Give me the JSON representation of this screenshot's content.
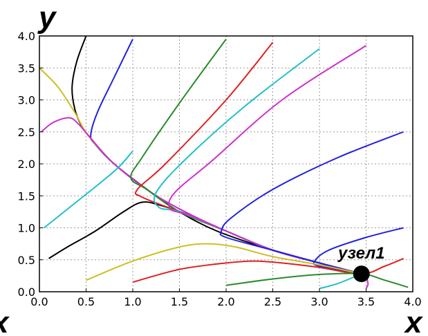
{
  "chart_data": {
    "type": "line",
    "xlabel": "x",
    "ylabel": "y",
    "xlim": [
      0,
      4
    ],
    "ylim": [
      0,
      4
    ],
    "xticks": [
      "0.0",
      "0.5",
      "1.0",
      "1.5",
      "2.0",
      "2.5",
      "3.0",
      "3.5",
      "4.0"
    ],
    "yticks": [
      "0.0",
      "0.5",
      "1.0",
      "1.5",
      "2.0",
      "2.5",
      "3.0",
      "3.5",
      "4.0"
    ],
    "grid": true,
    "left_edge_label": "x",
    "annotation": {
      "text": "узел1",
      "point": [
        3.45,
        0.28
      ]
    },
    "series": [
      {
        "color": "#000000",
        "points": [
          [
            0.5,
            4.0
          ],
          [
            0.4,
            3.6
          ],
          [
            0.35,
            3.2
          ],
          [
            0.38,
            2.85
          ],
          [
            0.45,
            2.6
          ],
          [
            0.55,
            2.4
          ],
          [
            0.8,
            2.0
          ],
          [
            1.2,
            1.55
          ],
          [
            1.5,
            1.25
          ],
          [
            1.9,
            0.95
          ],
          [
            2.5,
            0.65
          ],
          [
            3.0,
            0.45
          ],
          [
            3.45,
            0.28
          ]
        ]
      },
      {
        "color": "#000000",
        "points": [
          [
            0.1,
            0.52
          ],
          [
            0.3,
            0.7
          ],
          [
            0.6,
            0.95
          ],
          [
            0.9,
            1.25
          ],
          [
            1.1,
            1.4
          ],
          [
            1.3,
            1.35
          ],
          [
            1.6,
            1.2
          ],
          [
            2.0,
            0.95
          ],
          [
            2.5,
            0.65
          ],
          [
            3.0,
            0.45
          ],
          [
            3.45,
            0.28
          ]
        ]
      },
      {
        "color": "#2020e0",
        "points": [
          [
            1.0,
            3.95
          ],
          [
            0.8,
            3.35
          ],
          [
            0.62,
            2.8
          ],
          [
            0.55,
            2.45
          ],
          [
            0.6,
            2.3
          ],
          [
            0.8,
            2.0
          ],
          [
            1.2,
            1.55
          ],
          [
            1.6,
            1.22
          ],
          [
            2.0,
            0.95
          ],
          [
            2.5,
            0.65
          ],
          [
            3.0,
            0.45
          ],
          [
            3.45,
            0.28
          ]
        ]
      },
      {
        "color": "#ccc020",
        "points": [
          [
            0.0,
            3.5
          ],
          [
            0.2,
            3.2
          ],
          [
            0.38,
            2.8
          ],
          [
            0.52,
            2.45
          ],
          [
            0.8,
            2.0
          ],
          [
            1.2,
            1.55
          ],
          [
            1.6,
            1.22
          ],
          [
            2.0,
            0.95
          ],
          [
            2.5,
            0.65
          ],
          [
            3.0,
            0.45
          ],
          [
            3.45,
            0.28
          ]
        ]
      },
      {
        "color": "#cc30cc",
        "points": [
          [
            0.02,
            2.5
          ],
          [
            0.15,
            2.65
          ],
          [
            0.32,
            2.72
          ],
          [
            0.42,
            2.62
          ],
          [
            0.55,
            2.4
          ],
          [
            0.8,
            2.0
          ],
          [
            1.2,
            1.55
          ],
          [
            1.6,
            1.22
          ],
          [
            2.0,
            0.95
          ],
          [
            2.5,
            0.65
          ],
          [
            3.0,
            0.45
          ],
          [
            3.45,
            0.28
          ]
        ]
      },
      {
        "color": "#20c0c8",
        "points": [
          [
            0.05,
            1.0
          ],
          [
            0.35,
            1.35
          ],
          [
            0.65,
            1.7
          ],
          [
            0.85,
            1.95
          ],
          [
            1.0,
            2.2
          ]
        ]
      },
      {
        "color": "#2a8a2a",
        "points": [
          [
            2.0,
            3.95
          ],
          [
            1.5,
            2.95
          ],
          [
            1.1,
            2.1
          ],
          [
            0.98,
            1.78
          ],
          [
            1.15,
            1.6
          ],
          [
            1.5,
            1.25
          ],
          [
            2.0,
            0.95
          ],
          [
            2.5,
            0.65
          ],
          [
            3.0,
            0.45
          ],
          [
            3.45,
            0.28
          ]
        ]
      },
      {
        "color": "#e02020",
        "points": [
          [
            2.5,
            3.9
          ],
          [
            2.0,
            3.0
          ],
          [
            1.35,
            2.0
          ],
          [
            1.05,
            1.6
          ],
          [
            1.1,
            1.48
          ],
          [
            1.5,
            1.25
          ],
          [
            2.0,
            0.95
          ],
          [
            2.5,
            0.65
          ],
          [
            3.0,
            0.45
          ],
          [
            3.45,
            0.28
          ]
        ]
      },
      {
        "color": "#20c0c8",
        "points": [
          [
            3.0,
            3.8
          ],
          [
            2.2,
            2.9
          ],
          [
            1.55,
            2.05
          ],
          [
            1.25,
            1.55
          ],
          [
            1.28,
            1.32
          ],
          [
            1.5,
            1.25
          ],
          [
            2.0,
            0.95
          ],
          [
            2.5,
            0.65
          ],
          [
            3.0,
            0.45
          ],
          [
            3.45,
            0.28
          ]
        ]
      },
      {
        "color": "#cc30cc",
        "points": [
          [
            3.5,
            3.85
          ],
          [
            2.6,
            3.0
          ],
          [
            1.85,
            2.05
          ],
          [
            1.45,
            1.55
          ],
          [
            1.4,
            1.3
          ],
          [
            1.6,
            1.2
          ],
          [
            2.0,
            0.95
          ],
          [
            2.5,
            0.65
          ],
          [
            3.0,
            0.45
          ],
          [
            3.45,
            0.28
          ]
        ]
      },
      {
        "color": "#2020e0",
        "points": [
          [
            3.9,
            2.5
          ],
          [
            3.2,
            2.1
          ],
          [
            2.5,
            1.6
          ],
          [
            2.05,
            1.15
          ],
          [
            1.95,
            0.95
          ],
          [
            2.0,
            0.85
          ],
          [
            2.5,
            0.65
          ],
          [
            3.0,
            0.45
          ],
          [
            3.45,
            0.28
          ]
        ]
      },
      {
        "color": "#2020e0",
        "points": [
          [
            3.9,
            1.0
          ],
          [
            3.5,
            0.85
          ],
          [
            3.1,
            0.65
          ],
          [
            2.95,
            0.48
          ],
          [
            3.0,
            0.4
          ],
          [
            3.45,
            0.28
          ]
        ]
      },
      {
        "color": "#ccc020",
        "points": [
          [
            0.5,
            0.18
          ],
          [
            1.0,
            0.48
          ],
          [
            1.5,
            0.7
          ],
          [
            1.8,
            0.75
          ],
          [
            2.1,
            0.7
          ],
          [
            2.5,
            0.55
          ],
          [
            3.0,
            0.42
          ],
          [
            3.45,
            0.28
          ]
        ]
      },
      {
        "color": "#e02020",
        "points": [
          [
            1.0,
            0.15
          ],
          [
            1.5,
            0.35
          ],
          [
            2.0,
            0.45
          ],
          [
            2.3,
            0.48
          ],
          [
            2.6,
            0.45
          ],
          [
            3.0,
            0.38
          ],
          [
            3.45,
            0.28
          ],
          [
            3.7,
            0.4
          ],
          [
            3.9,
            0.52
          ]
        ]
      },
      {
        "color": "#2a8a2a",
        "points": [
          [
            2.0,
            0.1
          ],
          [
            2.5,
            0.2
          ],
          [
            3.0,
            0.27
          ],
          [
            3.45,
            0.28
          ],
          [
            3.7,
            0.18
          ],
          [
            3.95,
            0.07
          ]
        ]
      },
      {
        "color": "#20c0c8",
        "points": [
          [
            3.0,
            0.05
          ],
          [
            3.2,
            0.13
          ],
          [
            3.45,
            0.28
          ]
        ]
      },
      {
        "color": "#cc30cc",
        "points": [
          [
            3.45,
            0.28
          ],
          [
            3.5,
            0.22
          ],
          [
            3.52,
            0.12
          ],
          [
            3.5,
            0.05
          ]
        ]
      }
    ]
  }
}
